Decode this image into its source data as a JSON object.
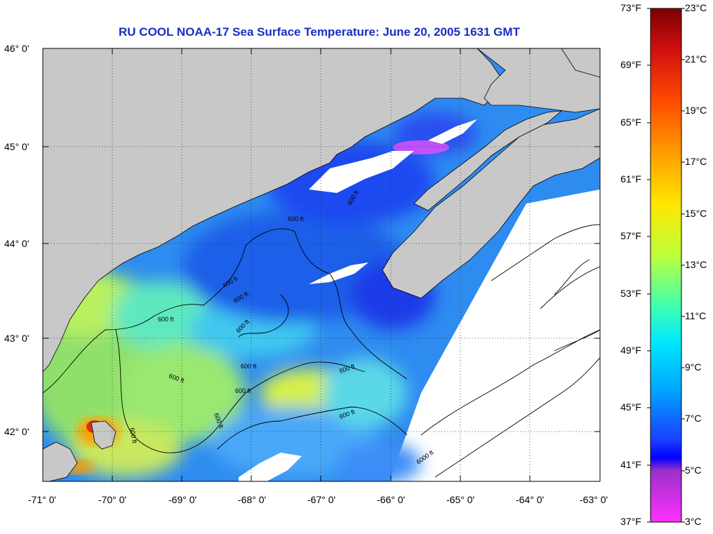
{
  "title": "RU COOL  NOAA-17  Sea Surface Temperature:  June 20, 2005 1631 GMT",
  "lat_labels": [
    "46° 0'",
    "45° 0'",
    "44° 0'",
    "43° 0'",
    "42° 0'"
  ],
  "lon_labels": [
    "-71° 0'",
    "-70° 0'",
    "-69° 0'",
    "-68° 0'",
    "-67° 0'",
    "-66° 0'",
    "-65° 0'",
    "-64° 0'",
    "-63° 0'"
  ],
  "colorbar": {
    "f_labels": [
      "73°F",
      "69°F",
      "65°F",
      "61°F",
      "57°F",
      "53°F",
      "49°F",
      "45°F",
      "41°F",
      "37°F"
    ],
    "c_labels": [
      "23°C",
      "21°C",
      "19°C",
      "17°C",
      "15°C",
      "13°C",
      "11°C",
      "9°C",
      "7°C",
      "5°C",
      "3°C"
    ],
    "colors": [
      "#7a0000",
      "#d01010",
      "#ff4a00",
      "#ff9c00",
      "#ffe600",
      "#bfff3a",
      "#3fffb0",
      "#00e8ff",
      "#00a8ff",
      "#1a40ff",
      "#0000ff",
      "#9b30c8",
      "#ff30ff"
    ]
  },
  "contour_labels": [
    "600 ft",
    "600 ft",
    "600 ft",
    "600 ft",
    "600 ft",
    "600 ft",
    "600 ft",
    "600 ft",
    "600 ft",
    "600 ft",
    "600 ft",
    "600 ft",
    "600 ft",
    "6000 ft"
  ],
  "colors": {
    "land": "#c8c8c8",
    "title": "#1a2fc4",
    "background": "#ffffff"
  }
}
